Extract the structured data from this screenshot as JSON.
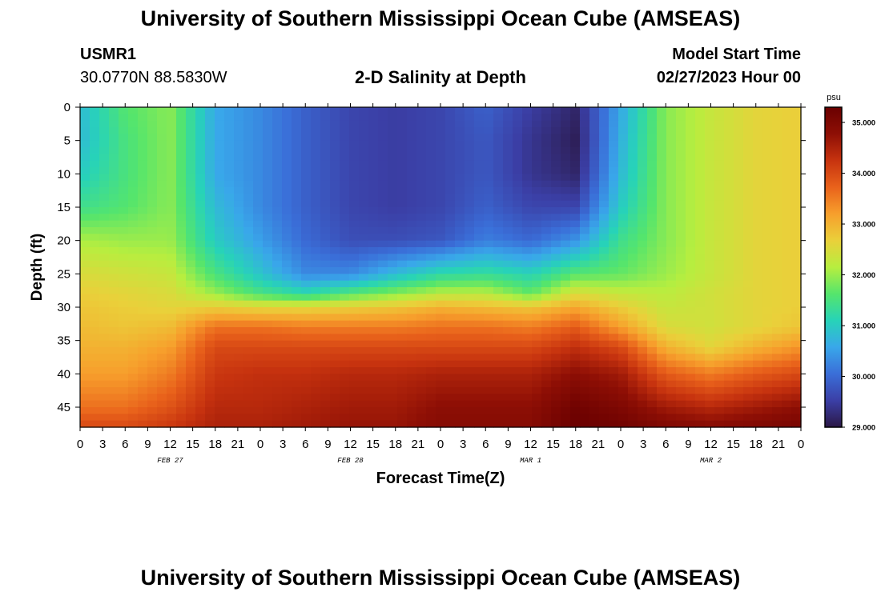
{
  "header": {
    "title": "University of Southern Mississippi Ocean Cube (AMSEAS)",
    "station": "USMR1",
    "coords": "30.0770N  88.5830W",
    "subtitle": "2-D Salinity at Depth",
    "model_start_label": "Model Start Time",
    "model_start_value": "02/27/2023 Hour 00"
  },
  "footer": {
    "title": "University of Southern Mississippi Ocean Cube (AMSEAS)"
  },
  "chart_data": {
    "type": "heatmap",
    "title": "2-D Salinity at Depth",
    "xlabel": "Forecast Time(Z)",
    "ylabel": "Depth (ft)",
    "x_tick_labels": [
      "0",
      "3",
      "6",
      "9",
      "12",
      "15",
      "18",
      "21",
      "0",
      "3",
      "6",
      "9",
      "12",
      "15",
      "18",
      "21",
      "0",
      "3",
      "6",
      "9",
      "12",
      "15",
      "18",
      "21",
      "0",
      "3",
      "6",
      "9",
      "12",
      "15",
      "18",
      "21",
      "0"
    ],
    "x_range_hours": [
      0,
      96
    ],
    "day_labels": [
      {
        "label": "FEB 27",
        "hour": 12
      },
      {
        "label": "FEB 28",
        "hour": 36
      },
      {
        "label": "MAR 1",
        "hour": 60
      },
      {
        "label": "MAR 2",
        "hour": 84
      }
    ],
    "y_tick_labels": [
      "0",
      "5",
      "10",
      "15",
      "20",
      "25",
      "30",
      "35",
      "40",
      "45"
    ],
    "y_range_ft": [
      0,
      48
    ],
    "colorbar": {
      "unit": "psu",
      "range": [
        29.0,
        35.3
      ],
      "tick_labels": [
        "35.000",
        "34.000",
        "33.000",
        "32.000",
        "31.000",
        "30.000",
        "29.000"
      ],
      "tick_values": [
        35,
        34,
        33,
        32,
        31,
        30,
        29
      ],
      "colors": [
        "#2b1846",
        "#3b3fa6",
        "#3a6ed8",
        "#39a7ea",
        "#27d3b8",
        "#55e56c",
        "#b7ee3f",
        "#ead03a",
        "#f79f2c",
        "#e9621b",
        "#c7330f",
        "#8e0f05",
        "#6a0000"
      ]
    },
    "salinity_grid": {
      "hours": [
        0,
        6,
        12,
        18,
        24,
        30,
        36,
        42,
        48,
        54,
        60,
        66,
        72,
        78,
        84,
        90,
        96
      ],
      "depths_ft": [
        0,
        5,
        10,
        15,
        20,
        25,
        28,
        30,
        33,
        36,
        40,
        45,
        48
      ],
      "values": [
        [
          30.8,
          31.6,
          31.9,
          30.6,
          30.3,
          29.9,
          29.6,
          29.5,
          29.6,
          29.9,
          29.5,
          29.2,
          30.6,
          31.9,
          32.3,
          32.6,
          32.7
        ],
        [
          30.8,
          31.5,
          31.9,
          30.6,
          30.3,
          29.9,
          29.6,
          29.5,
          29.6,
          29.8,
          29.4,
          29.1,
          30.7,
          31.9,
          32.3,
          32.6,
          32.7
        ],
        [
          31.0,
          31.5,
          31.9,
          30.6,
          30.3,
          29.9,
          29.6,
          29.5,
          29.6,
          29.8,
          29.4,
          29.2,
          30.8,
          31.9,
          32.3,
          32.6,
          32.7
        ],
        [
          31.4,
          31.6,
          31.9,
          30.8,
          30.3,
          29.9,
          29.6,
          29.5,
          29.6,
          29.9,
          29.6,
          29.6,
          31.0,
          31.9,
          32.3,
          32.6,
          32.7
        ],
        [
          32.1,
          32.0,
          32.0,
          31.0,
          30.5,
          30.0,
          29.7,
          29.7,
          29.8,
          30.2,
          30.0,
          30.4,
          31.4,
          31.9,
          32.3,
          32.6,
          32.7
        ],
        [
          32.5,
          32.4,
          32.3,
          31.5,
          30.9,
          30.3,
          30.3,
          30.8,
          31.2,
          31.3,
          31.1,
          31.6,
          31.7,
          32.0,
          32.3,
          32.6,
          32.7
        ],
        [
          32.7,
          32.6,
          32.5,
          32.0,
          31.5,
          31.2,
          31.6,
          31.9,
          32.2,
          32.2,
          31.7,
          32.5,
          32.3,
          32.2,
          32.4,
          32.6,
          32.7
        ],
        [
          32.8,
          32.7,
          32.6,
          32.7,
          32.6,
          32.6,
          32.7,
          32.8,
          33.0,
          32.9,
          32.8,
          33.1,
          32.7,
          32.3,
          32.4,
          32.6,
          32.7
        ],
        [
          32.9,
          32.8,
          32.9,
          33.6,
          33.6,
          33.5,
          33.5,
          33.5,
          33.6,
          33.6,
          33.5,
          33.8,
          33.2,
          32.5,
          32.4,
          32.6,
          32.8
        ],
        [
          33.0,
          33.0,
          33.2,
          34.0,
          34.0,
          34.0,
          34.0,
          34.0,
          34.0,
          34.0,
          34.0,
          34.3,
          34.0,
          33.0,
          32.6,
          33.0,
          33.3
        ],
        [
          33.2,
          33.2,
          33.5,
          34.2,
          34.3,
          34.3,
          34.4,
          34.4,
          34.5,
          34.5,
          34.5,
          34.8,
          34.6,
          33.8,
          33.5,
          33.8,
          34.0
        ],
        [
          33.6,
          33.6,
          33.9,
          34.4,
          34.4,
          34.5,
          34.6,
          34.6,
          34.8,
          34.8,
          34.8,
          35.2,
          35.0,
          34.6,
          34.4,
          34.6,
          34.8
        ],
        [
          34.0,
          34.0,
          34.2,
          34.5,
          34.5,
          34.6,
          34.7,
          34.7,
          34.9,
          34.9,
          34.9,
          35.3,
          35.2,
          35.0,
          34.9,
          35.0,
          35.1
        ]
      ]
    }
  }
}
